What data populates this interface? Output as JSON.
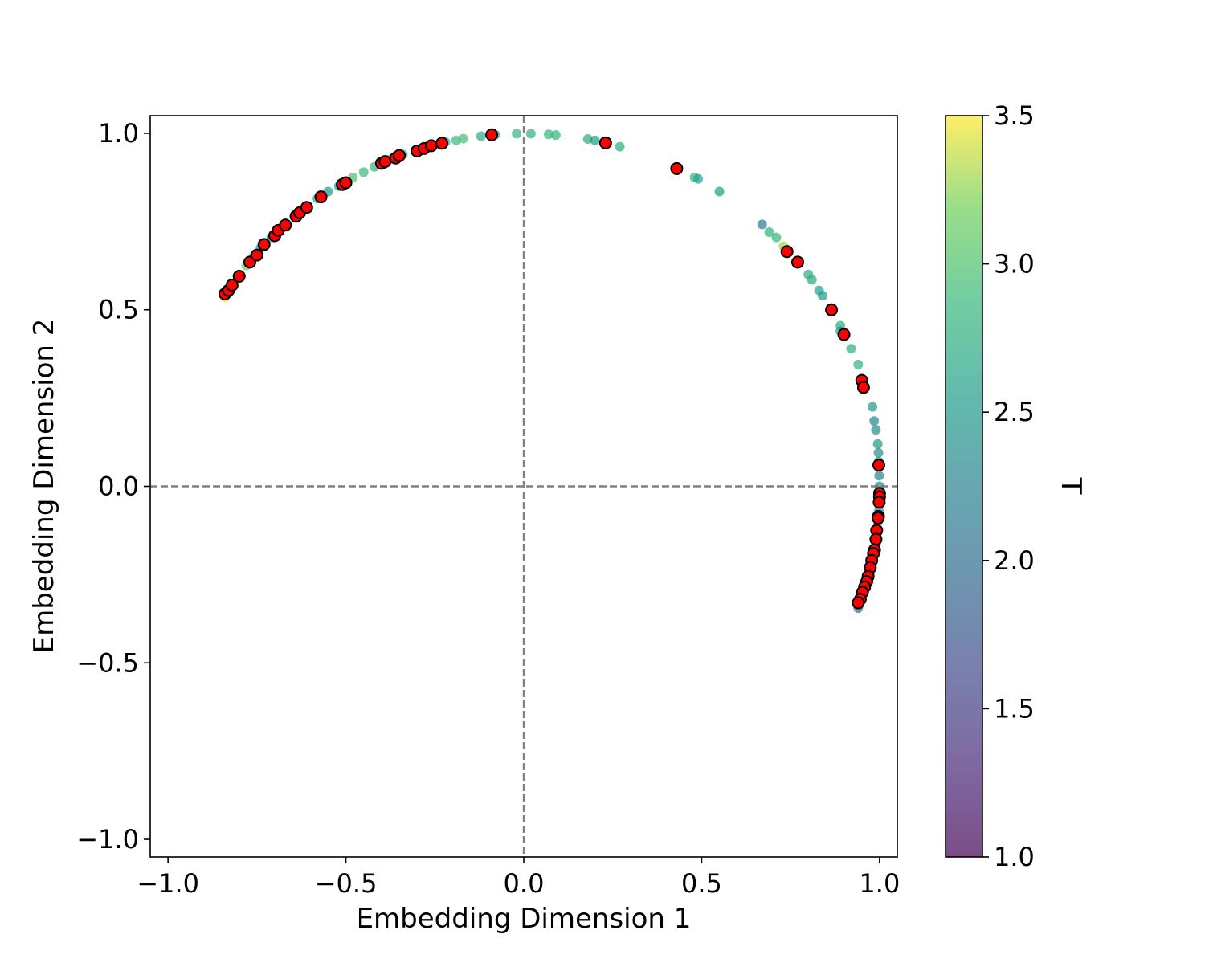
{
  "chart_data": {
    "type": "scatter",
    "title": "",
    "xlabel": "Embedding Dimension 1",
    "ylabel": "Embedding Dimension 2",
    "xlim": [
      -1.05,
      1.05
    ],
    "ylim": [
      -1.05,
      1.05
    ],
    "x_ticks": [
      -1.0,
      -0.5,
      0.0,
      0.5,
      1.0
    ],
    "y_ticks": [
      -1.0,
      -0.5,
      0.0,
      0.5,
      1.0
    ],
    "x_tick_labels": [
      "−1.0",
      "−0.5",
      "0.0",
      "0.5",
      "1.0"
    ],
    "y_tick_labels": [
      "−1.0",
      "−0.5",
      "0.0",
      "0.5",
      "1.0"
    ],
    "reference_lines": [
      {
        "orientation": "vertical",
        "value": 0.0,
        "style": "dashed",
        "color": "#808080"
      },
      {
        "orientation": "horizontal",
        "value": 0.0,
        "style": "dashed",
        "color": "#808080"
      }
    ],
    "grid": false,
    "legend": "none",
    "colorbar": {
      "label": "T",
      "colormap": "viridis",
      "range": [
        1.0,
        3.5
      ],
      "ticks": [
        1.0,
        1.5,
        2.0,
        2.5,
        3.0,
        3.5
      ],
      "tick_labels": [
        "1.0",
        "1.5",
        "2.0",
        "2.5",
        "3.0",
        "3.5"
      ]
    },
    "series": [
      {
        "marker_style": "circle, viridis-colored by T, alpha 0.7",
        "points": [
          {
            "x": -0.84,
            "y": 0.535,
            "t": 3.45
          },
          {
            "x": -0.83,
            "y": 0.55,
            "t": 3.4
          },
          {
            "x": -0.82,
            "y": 0.565,
            "t": 3.35
          },
          {
            "x": -0.8,
            "y": 0.6,
            "t": 3.3
          },
          {
            "x": -0.78,
            "y": 0.625,
            "t": 3.2
          },
          {
            "x": -0.76,
            "y": 0.65,
            "t": 2.6
          },
          {
            "x": -0.74,
            "y": 0.675,
            "t": 2.55
          },
          {
            "x": -0.71,
            "y": 0.705,
            "t": 2.5
          },
          {
            "x": -0.69,
            "y": 0.725,
            "t": 2.45
          },
          {
            "x": -0.67,
            "y": 0.745,
            "t": 2.5
          },
          {
            "x": -0.64,
            "y": 0.77,
            "t": 2.55
          },
          {
            "x": -0.61,
            "y": 0.79,
            "t": 2.6
          },
          {
            "x": -0.58,
            "y": 0.815,
            "t": 2.65
          },
          {
            "x": -0.55,
            "y": 0.835,
            "t": 2.5
          },
          {
            "x": -0.52,
            "y": 0.85,
            "t": 2.6
          },
          {
            "x": -0.48,
            "y": 0.875,
            "t": 3.0
          },
          {
            "x": -0.45,
            "y": 0.89,
            "t": 2.9
          },
          {
            "x": -0.42,
            "y": 0.905,
            "t": 2.85
          },
          {
            "x": -0.38,
            "y": 0.925,
            "t": 2.7
          },
          {
            "x": -0.34,
            "y": 0.94,
            "t": 2.65
          },
          {
            "x": -0.3,
            "y": 0.95,
            "t": 2.6
          },
          {
            "x": -0.26,
            "y": 0.965,
            "t": 2.75
          },
          {
            "x": -0.22,
            "y": 0.975,
            "t": 2.8
          },
          {
            "x": -0.19,
            "y": 0.98,
            "t": 2.9
          },
          {
            "x": -0.17,
            "y": 0.985,
            "t": 2.95
          },
          {
            "x": -0.12,
            "y": 0.992,
            "t": 2.7
          },
          {
            "x": -0.08,
            "y": 0.996,
            "t": 2.75
          },
          {
            "x": -0.02,
            "y": 0.999,
            "t": 2.85
          },
          {
            "x": 0.02,
            "y": 0.999,
            "t": 2.8
          },
          {
            "x": 0.07,
            "y": 0.997,
            "t": 2.85
          },
          {
            "x": 0.09,
            "y": 0.995,
            "t": 2.8
          },
          {
            "x": 0.18,
            "y": 0.984,
            "t": 2.7
          },
          {
            "x": 0.2,
            "y": 0.98,
            "t": 2.5
          },
          {
            "x": 0.27,
            "y": 0.962,
            "t": 2.75
          },
          {
            "x": 0.48,
            "y": 0.875,
            "t": 2.8
          },
          {
            "x": 0.49,
            "y": 0.871,
            "t": 2.6
          },
          {
            "x": 0.55,
            "y": 0.835,
            "t": 2.5
          },
          {
            "x": 0.67,
            "y": 0.742,
            "t": 2.15
          },
          {
            "x": 0.69,
            "y": 0.72,
            "t": 2.8
          },
          {
            "x": 0.71,
            "y": 0.705,
            "t": 2.85
          },
          {
            "x": 0.73,
            "y": 0.68,
            "t": 3.3
          },
          {
            "x": 0.8,
            "y": 0.6,
            "t": 2.75
          },
          {
            "x": 0.81,
            "y": 0.585,
            "t": 2.7
          },
          {
            "x": 0.83,
            "y": 0.555,
            "t": 2.6
          },
          {
            "x": 0.84,
            "y": 0.54,
            "t": 2.5
          },
          {
            "x": 0.89,
            "y": 0.455,
            "t": 2.7
          },
          {
            "x": 0.89,
            "y": 0.44,
            "t": 2.6
          },
          {
            "x": 0.92,
            "y": 0.39,
            "t": 2.75
          },
          {
            "x": 0.94,
            "y": 0.345,
            "t": 2.8
          },
          {
            "x": 0.98,
            "y": 0.225,
            "t": 2.5
          },
          {
            "x": 0.985,
            "y": 0.185,
            "t": 2.3
          },
          {
            "x": 0.99,
            "y": 0.16,
            "t": 2.4
          },
          {
            "x": 0.995,
            "y": 0.12,
            "t": 2.45
          },
          {
            "x": 0.997,
            "y": 0.095,
            "t": 2.35
          },
          {
            "x": 0.998,
            "y": 0.07,
            "t": 2.4
          },
          {
            "x": 0.999,
            "y": 0.03,
            "t": 2.3
          },
          {
            "x": 1.0,
            "y": 0.0,
            "t": 2.35
          },
          {
            "x": 0.999,
            "y": -0.03,
            "t": 2.3
          },
          {
            "x": 0.998,
            "y": -0.07,
            "t": 2.4
          },
          {
            "x": 0.996,
            "y": -0.1,
            "t": 2.25
          },
          {
            "x": 0.993,
            "y": -0.13,
            "t": 2.3
          },
          {
            "x": 0.99,
            "y": -0.165,
            "t": 2.2
          },
          {
            "x": 0.985,
            "y": -0.19,
            "t": 2.25
          },
          {
            "x": 0.98,
            "y": -0.215,
            "t": 2.2
          },
          {
            "x": 0.975,
            "y": -0.24,
            "t": 2.15
          },
          {
            "x": 0.968,
            "y": -0.265,
            "t": 2.2
          },
          {
            "x": 0.96,
            "y": -0.29,
            "t": 2.15
          },
          {
            "x": 0.95,
            "y": -0.31,
            "t": 2.1
          },
          {
            "x": 0.945,
            "y": -0.33,
            "t": 2.1
          },
          {
            "x": 0.94,
            "y": -0.345,
            "t": 2.05
          }
        ]
      },
      {
        "marker_style": "circle, red fill, black edge",
        "color": "#ff0000",
        "edge_color": "#000000",
        "points": [
          {
            "x": -0.84,
            "y": 0.545
          },
          {
            "x": -0.83,
            "y": 0.555
          },
          {
            "x": -0.82,
            "y": 0.57
          },
          {
            "x": -0.8,
            "y": 0.595
          },
          {
            "x": -0.77,
            "y": 0.635
          },
          {
            "x": -0.75,
            "y": 0.655
          },
          {
            "x": -0.73,
            "y": 0.685
          },
          {
            "x": -0.7,
            "y": 0.71
          },
          {
            "x": -0.69,
            "y": 0.725
          },
          {
            "x": -0.67,
            "y": 0.74
          },
          {
            "x": -0.64,
            "y": 0.765
          },
          {
            "x": -0.63,
            "y": 0.775
          },
          {
            "x": -0.61,
            "y": 0.79
          },
          {
            "x": -0.57,
            "y": 0.82
          },
          {
            "x": -0.51,
            "y": 0.855
          },
          {
            "x": -0.5,
            "y": 0.86
          },
          {
            "x": -0.4,
            "y": 0.915
          },
          {
            "x": -0.39,
            "y": 0.92
          },
          {
            "x": -0.36,
            "y": 0.93
          },
          {
            "x": -0.35,
            "y": 0.937
          },
          {
            "x": -0.3,
            "y": 0.95
          },
          {
            "x": -0.28,
            "y": 0.957
          },
          {
            "x": -0.26,
            "y": 0.965
          },
          {
            "x": -0.23,
            "y": 0.972
          },
          {
            "x": -0.09,
            "y": 0.996
          },
          {
            "x": 0.23,
            "y": 0.973
          },
          {
            "x": 0.43,
            "y": 0.9
          },
          {
            "x": 0.74,
            "y": 0.665
          },
          {
            "x": 0.77,
            "y": 0.635
          },
          {
            "x": 0.865,
            "y": 0.5
          },
          {
            "x": 0.9,
            "y": 0.43
          },
          {
            "x": 0.95,
            "y": 0.3
          },
          {
            "x": 0.955,
            "y": 0.28
          },
          {
            "x": 0.998,
            "y": 0.06
          },
          {
            "x": 1.0,
            "y": -0.02
          },
          {
            "x": 1.0,
            "y": -0.03
          },
          {
            "x": 0.999,
            "y": -0.045
          },
          {
            "x": 0.997,
            "y": -0.085
          },
          {
            "x": 0.996,
            "y": -0.09
          },
          {
            "x": 0.992,
            "y": -0.125
          },
          {
            "x": 0.99,
            "y": -0.15
          },
          {
            "x": 0.986,
            "y": -0.18
          },
          {
            "x": 0.983,
            "y": -0.19
          },
          {
            "x": 0.978,
            "y": -0.21
          },
          {
            "x": 0.974,
            "y": -0.23
          },
          {
            "x": 0.968,
            "y": -0.255
          },
          {
            "x": 0.964,
            "y": -0.27
          },
          {
            "x": 0.958,
            "y": -0.285
          },
          {
            "x": 0.952,
            "y": -0.3
          },
          {
            "x": 0.946,
            "y": -0.32
          },
          {
            "x": 0.94,
            "y": -0.33
          }
        ]
      }
    ]
  }
}
